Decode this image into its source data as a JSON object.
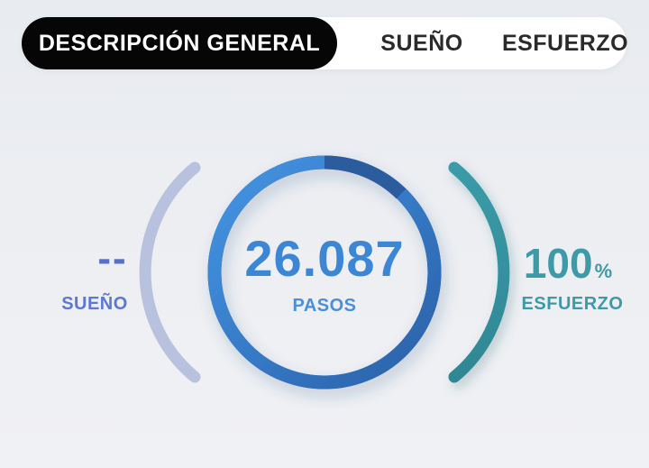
{
  "tabs": [
    {
      "label": "DESCRIPCIÓN GENERAL",
      "active": true
    },
    {
      "label": "SUEÑO",
      "active": false
    },
    {
      "label": "ESFUERZO",
      "active": false
    }
  ],
  "sleep": {
    "value": "--",
    "label": "SUEÑO",
    "color": "#5770d0",
    "arc_color": "#b8c2de"
  },
  "steps": {
    "value": "26.087",
    "label": "PASOS",
    "color": "#3c86d6",
    "ring_color_start": "#3f8fe0",
    "ring_color_end": "#2c64a8"
  },
  "effort": {
    "value": "100",
    "unit": "%",
    "label": "ESFUERZO",
    "color": "#3e9aa6"
  }
}
